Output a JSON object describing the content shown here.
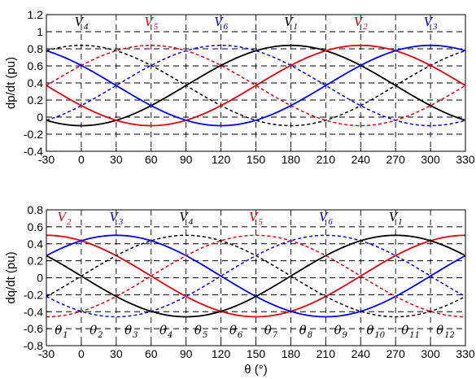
{
  "colors": {
    "black": "#000000",
    "red": "#e8000b",
    "blue": "#0000ff"
  },
  "chart_data": [
    {
      "type": "line",
      "ylabel": "dp/dt (pu)",
      "xlabel": "",
      "xlim": [
        -30,
        330
      ],
      "ylim": [
        -0.4,
        1.2
      ],
      "xticks": [
        "-30",
        "0",
        "30",
        "60",
        "90",
        "120",
        "150",
        "180",
        "210",
        "240",
        "270",
        "300",
        "330"
      ],
      "yticks": [
        "-0.4",
        "-0.2",
        "0",
        "0.2",
        "0.4",
        "0.6",
        "0.8",
        "1",
        "1.2"
      ],
      "grid": true,
      "vector_labels": [
        {
          "main": "V",
          "sub": "4",
          "x": 0,
          "color": "black"
        },
        {
          "main": "V",
          "sub": "5",
          "x": 60,
          "color": "red"
        },
        {
          "main": "V",
          "sub": "6",
          "x": 120,
          "color": "blue"
        },
        {
          "main": "V",
          "sub": "1",
          "x": 180,
          "color": "black"
        },
        {
          "main": "V",
          "sub": "2",
          "x": 240,
          "color": "red"
        },
        {
          "main": "V",
          "sub": "3",
          "x": 300,
          "color": "blue"
        }
      ],
      "series": [
        {
          "color": "black",
          "style": "dashed",
          "offset": 0.37,
          "amplitude": 0.47,
          "peak_deg": 0
        },
        {
          "color": "red",
          "style": "dashed",
          "offset": 0.37,
          "amplitude": 0.47,
          "peak_deg": 60
        },
        {
          "color": "blue",
          "style": "dashed",
          "offset": 0.37,
          "amplitude": 0.47,
          "peak_deg": 120
        },
        {
          "color": "black",
          "style": "solid",
          "offset": 0.37,
          "amplitude": 0.47,
          "peak_deg": 180
        },
        {
          "color": "red",
          "style": "solid",
          "offset": 0.37,
          "amplitude": 0.47,
          "peak_deg": 240
        },
        {
          "color": "blue",
          "style": "solid",
          "offset": 0.37,
          "amplitude": 0.47,
          "peak_deg": 300
        }
      ]
    },
    {
      "type": "line",
      "ylabel": "dq/dt (pu)",
      "xlabel": "θ (°)",
      "xlim": [
        -30,
        330
      ],
      "ylim": [
        -0.8,
        0.8
      ],
      "xticks": [
        "-30",
        "0",
        "30",
        "60",
        "90",
        "120",
        "150",
        "180",
        "210",
        "240",
        "270",
        "300",
        "330"
      ],
      "yticks": [
        "-0.8",
        "-0.6",
        "-0.4",
        "-0.2",
        "0",
        "0.2",
        "0.4",
        "0.6",
        "0.8"
      ],
      "grid": true,
      "vector_labels": [
        {
          "main": "V",
          "sub": "2",
          "x": -30,
          "color": "red"
        },
        {
          "main": "V",
          "sub": "3",
          "x": 30,
          "color": "blue"
        },
        {
          "main": "V",
          "sub": "4",
          "x": 90,
          "color": "black"
        },
        {
          "main": "V",
          "sub": "5",
          "x": 150,
          "color": "red"
        },
        {
          "main": "V",
          "sub": "6",
          "x": 210,
          "color": "blue"
        },
        {
          "main": "V",
          "sub": "1",
          "x": 270,
          "color": "black"
        }
      ],
      "sector_labels": [
        {
          "main": "θ",
          "sub": "1",
          "x": -15
        },
        {
          "main": "θ",
          "sub": "2",
          "x": 15
        },
        {
          "main": "θ",
          "sub": "3",
          "x": 45
        },
        {
          "main": "θ",
          "sub": "4",
          "x": 75
        },
        {
          "main": "θ",
          "sub": "5",
          "x": 105
        },
        {
          "main": "θ",
          "sub": "6",
          "x": 135
        },
        {
          "main": "θ",
          "sub": "7",
          "x": 165
        },
        {
          "main": "θ",
          "sub": "8",
          "x": 195
        },
        {
          "main": "θ",
          "sub": "9",
          "x": 225
        },
        {
          "main": "θ",
          "sub": "10",
          "x": 255
        },
        {
          "main": "θ",
          "sub": "11",
          "x": 285
        },
        {
          "main": "θ",
          "sub": "12",
          "x": 315
        }
      ],
      "series": [
        {
          "color": "red",
          "style": "solid",
          "offset": 0.02,
          "amplitude": 0.48,
          "peak_deg": -30
        },
        {
          "color": "blue",
          "style": "solid",
          "offset": 0.02,
          "amplitude": 0.48,
          "peak_deg": 30
        },
        {
          "color": "black",
          "style": "dashed",
          "offset": 0.02,
          "amplitude": 0.48,
          "peak_deg": 90
        },
        {
          "color": "red",
          "style": "dashed",
          "offset": 0.02,
          "amplitude": 0.48,
          "peak_deg": 150
        },
        {
          "color": "blue",
          "style": "dashed",
          "offset": 0.02,
          "amplitude": 0.48,
          "peak_deg": 210
        },
        {
          "color": "black",
          "style": "solid",
          "offset": 0.02,
          "amplitude": 0.48,
          "peak_deg": 270
        }
      ]
    }
  ]
}
